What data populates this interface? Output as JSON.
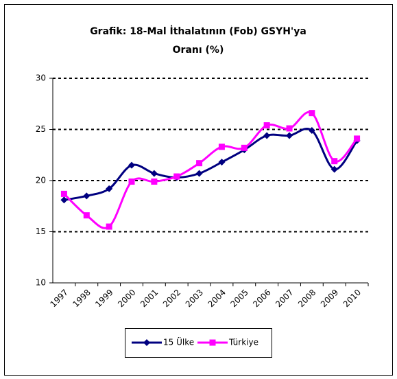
{
  "chart_data": {
    "type": "line",
    "title": [
      "Grafik: 18-Mal İthalatının (Fob) GSYH'ya",
      "Oranı (%)"
    ],
    "categories": [
      "1997",
      "1998",
      "1999",
      "2000",
      "2001",
      "2002",
      "2003",
      "2004",
      "2005",
      "2006",
      "2007",
      "2008",
      "2009",
      "2010"
    ],
    "series": [
      {
        "name": "15 Ülke",
        "color": "#000080",
        "marker": "diamond",
        "values": [
          18.1,
          18.5,
          19.2,
          21.5,
          20.7,
          20.3,
          20.7,
          21.8,
          23.0,
          24.4,
          24.4,
          24.9,
          21.1,
          23.9
        ]
      },
      {
        "name": "Türkiye",
        "color": "#ff00ff",
        "marker": "square",
        "values": [
          18.7,
          16.6,
          15.5,
          19.9,
          19.9,
          20.4,
          21.7,
          23.3,
          23.2,
          25.4,
          25.1,
          26.6,
          21.9,
          24.1
        ]
      }
    ],
    "ylim": [
      10,
      30
    ],
    "yticks": [
      10,
      15,
      20,
      25,
      30
    ],
    "grid": true,
    "legend": "bottom"
  }
}
